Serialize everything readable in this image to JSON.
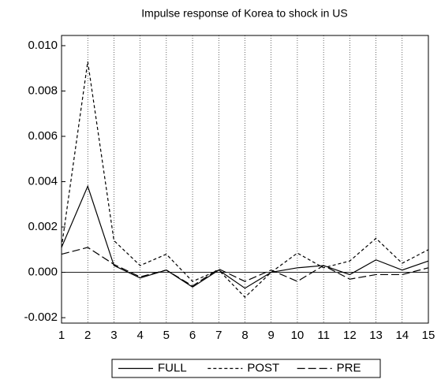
{
  "chart_data": {
    "type": "line",
    "title": "Impulse response of Korea to shock in US",
    "x": [
      1,
      2,
      3,
      4,
      5,
      6,
      7,
      8,
      9,
      10,
      11,
      12,
      13,
      14,
      15
    ],
    "xlim": [
      1,
      15
    ],
    "xticks": [
      1,
      2,
      3,
      4,
      5,
      6,
      7,
      8,
      9,
      10,
      11,
      12,
      13,
      14,
      15
    ],
    "ylim": [
      -0.00224,
      0.01045
    ],
    "yticks": [
      {
        "value": -0.002,
        "label": "-0.002"
      },
      {
        "value": 0,
        "label": "0.000"
      },
      {
        "value": 0.002,
        "label": "0.002"
      },
      {
        "value": 0.004,
        "label": "0.004"
      },
      {
        "value": 0.006,
        "label": "0.006"
      },
      {
        "value": 0.008,
        "label": "0.008"
      },
      {
        "value": 0.01,
        "label": "0.010"
      }
    ],
    "grid": true,
    "legend": "bottom",
    "series": [
      {
        "name": "FULL",
        "color": "#000000",
        "dash": "none",
        "values": [
          0.0011,
          0.0038,
          0.0003,
          -0.00025,
          0.0001,
          -0.00065,
          0.0001,
          -0.0007,
          0.0,
          0.0002,
          0.0003,
          -0.0001,
          0.00055,
          0.0001,
          0.0005
        ]
      },
      {
        "name": "POST",
        "color": "#000000",
        "dash": "4,3",
        "values": [
          0.0011,
          0.0093,
          0.0014,
          0.0003,
          0.0008,
          -0.0004,
          0.0001,
          -0.0011,
          0.0,
          0.00085,
          0.0002,
          0.0005,
          0.0015,
          0.0004,
          0.001
        ]
      },
      {
        "name": "PRE",
        "color": "#000000",
        "dash": "10,4",
        "values": [
          0.0008,
          0.0011,
          0.00035,
          -0.0002,
          0.0001,
          -0.0006,
          0.00015,
          -0.0004,
          0.0001,
          -0.0004,
          0.0003,
          -0.0003,
          -0.0001,
          -0.0001,
          0.0002
        ]
      }
    ]
  }
}
